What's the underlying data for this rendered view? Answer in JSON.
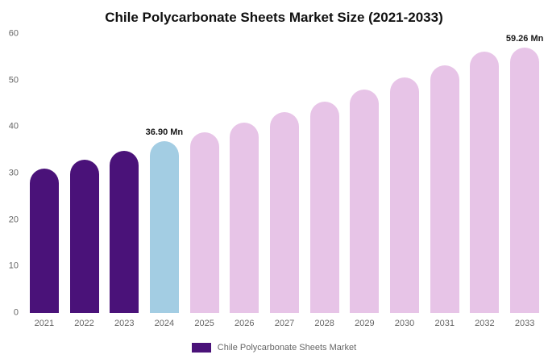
{
  "chart_data": {
    "type": "bar",
    "title": "Chile Polycarbonate Sheets Market Size (2021-2033)",
    "categories": [
      "2021",
      "2022",
      "2023",
      "2024",
      "2025",
      "2026",
      "2027",
      "2028",
      "2029",
      "2030",
      "2031",
      "2032",
      "2033"
    ],
    "values": [
      31.0,
      33.0,
      34.8,
      36.9,
      38.9,
      41.0,
      43.2,
      45.5,
      48.0,
      50.6,
      53.3,
      56.2,
      59.26
    ],
    "unit": "Mn",
    "ylim": [
      0,
      60
    ],
    "yticks": [
      0,
      10,
      20,
      30,
      40,
      50,
      60
    ],
    "grid": false,
    "legend_position": "bottom",
    "bar_colors": [
      "#4a1279",
      "#4a1279",
      "#4a1279",
      "#a3cde3",
      "#e7c4e7",
      "#e7c4e7",
      "#e7c4e7",
      "#e7c4e7",
      "#e7c4e7",
      "#e7c4e7",
      "#e7c4e7",
      "#e7c4e7",
      "#e7c4e7"
    ],
    "annotations": [
      {
        "index": 3,
        "text": "36.90 Mn"
      },
      {
        "index": 12,
        "text": "59.26 Mn"
      }
    ],
    "legend": {
      "label": "Chile Polycarbonate Sheets Market",
      "color": "#4a1279"
    }
  }
}
